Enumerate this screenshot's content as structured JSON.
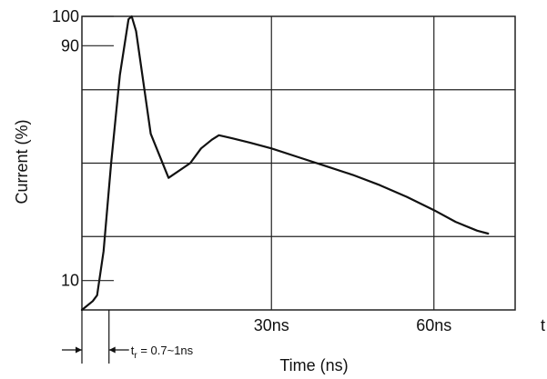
{
  "chart_data": {
    "type": "line",
    "title": "",
    "xlabel": "Time (ns)",
    "ylabel": "Current (%)",
    "x_tick_labels": [
      {
        "x": 30,
        "label": "30ns"
      },
      {
        "x": 60,
        "label": "60ns"
      }
    ],
    "x_end_label": "t",
    "y_tick_labels": [
      {
        "y": 100,
        "label": "100"
      },
      {
        "y": 90,
        "label": "90"
      },
      {
        "y": 10,
        "label": "10"
      }
    ],
    "xlim": [
      -5,
      75
    ],
    "ylim": [
      0,
      100
    ],
    "grid": true,
    "series": [
      {
        "x": [
          -5,
          -3,
          -2.2,
          -1,
          0.4,
          2,
          3.6,
          4.2,
          5,
          7.7,
          11,
          15,
          17,
          19,
          20.3,
          21.5,
          26,
          30,
          35,
          40,
          45,
          50,
          55,
          60,
          64,
          68,
          70
        ],
        "y": [
          0,
          3,
          5,
          20,
          50,
          80,
          99,
          100,
          95,
          60,
          45,
          50,
          55,
          58,
          59.5,
          59,
          57,
          55,
          52,
          49,
          46,
          42.5,
          38.5,
          34,
          30,
          27,
          26
        ]
      }
    ],
    "annotation": {
      "text": "t",
      "subscript": "r",
      "value_text": " = 0.7~1ns",
      "x_from": -5,
      "x_to": 0
    },
    "colors": {
      "line": "#111111",
      "grid": "#222222"
    }
  }
}
